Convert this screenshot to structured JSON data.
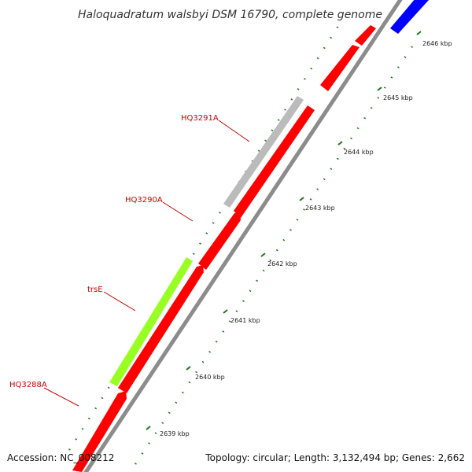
{
  "header": {
    "title": "Haloquadratum walsbyi DSM 16790, complete genome"
  },
  "footer": {
    "accession": "Accession: NC_008212",
    "summary": "Topology: circular; Length: 3,132,494 bp; Genes: 2,662"
  },
  "colors": {
    "forward_gene": "#ff0000",
    "reverse_gene_gray": "#bbbbbb",
    "trsE_gene": "#99ff22",
    "blue_gene": "#0000ff",
    "backbone": "#999999",
    "tick": "#1a7a1a",
    "label": "#cc0000"
  },
  "ticks": [
    {
      "label": "2639 kbp"
    },
    {
      "label": "2640 kbp"
    },
    {
      "label": "2641 kbp"
    },
    {
      "label": "2642 kbp"
    },
    {
      "label": "2643 kbp"
    },
    {
      "label": "2644 kbp"
    },
    {
      "label": "2645 kbp"
    },
    {
      "label": "2646 kbp"
    }
  ],
  "gene_labels": [
    {
      "text": "HQ3288A"
    },
    {
      "text": "trsE"
    },
    {
      "text": "HQ3290A"
    },
    {
      "text": "HQ3291A"
    }
  ]
}
